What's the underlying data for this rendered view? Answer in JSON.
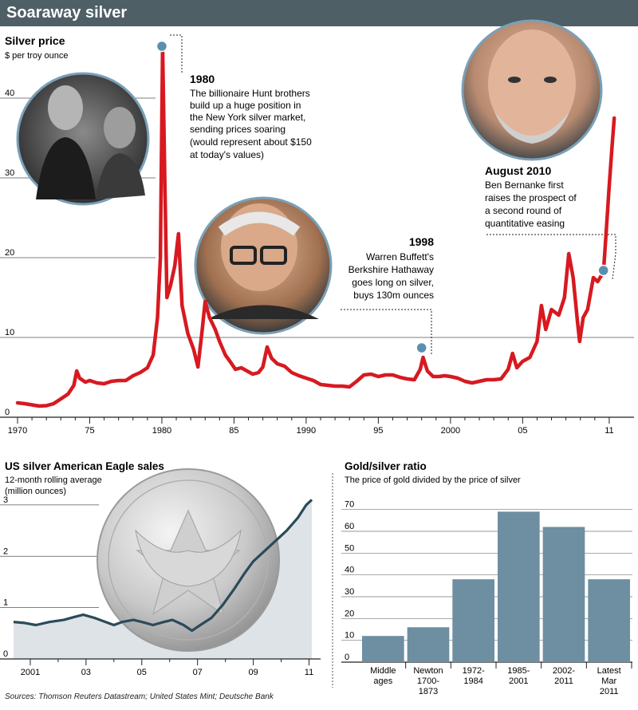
{
  "header": {
    "title": "Soaraway silver"
  },
  "chart_data": [
    {
      "type": "line",
      "title": "Silver price",
      "subtitle": "$ per troy ounce",
      "ylim": [
        0,
        48
      ],
      "y_ticks": [
        "0",
        "10",
        "20",
        "30",
        "40"
      ],
      "x_ticks": [
        "1970",
        "75",
        "1980",
        "85",
        "1990",
        "95",
        "2000",
        "05",
        "11"
      ],
      "series": [
        {
          "color": "#d71920",
          "points": [
            [
              1970.0,
              1.8
            ],
            [
              1970.5,
              1.7
            ],
            [
              1971.0,
              1.55
            ],
            [
              1971.5,
              1.4
            ],
            [
              1972.0,
              1.45
            ],
            [
              1972.5,
              1.7
            ],
            [
              1973.0,
              2.3
            ],
            [
              1973.5,
              2.9
            ],
            [
              1973.9,
              4.0
            ],
            [
              1974.1,
              5.8
            ],
            [
              1974.3,
              4.9
            ],
            [
              1974.7,
              4.4
            ],
            [
              1975.0,
              4.6
            ],
            [
              1975.5,
              4.3
            ],
            [
              1976.0,
              4.2
            ],
            [
              1976.5,
              4.5
            ],
            [
              1977.0,
              4.6
            ],
            [
              1977.5,
              4.6
            ],
            [
              1978.0,
              5.2
            ],
            [
              1978.5,
              5.6
            ],
            [
              1979.0,
              6.2
            ],
            [
              1979.4,
              7.8
            ],
            [
              1979.7,
              12.5
            ],
            [
              1979.9,
              20.0
            ],
            [
              1980.05,
              46.5
            ],
            [
              1980.2,
              30.0
            ],
            [
              1980.35,
              15.0
            ],
            [
              1980.6,
              16.5
            ],
            [
              1980.9,
              19.0
            ],
            [
              1981.15,
              23.0
            ],
            [
              1981.4,
              14.0
            ],
            [
              1981.8,
              10.5
            ],
            [
              1982.2,
              8.5
            ],
            [
              1982.5,
              6.3
            ],
            [
              1982.8,
              11.0
            ],
            [
              1983.0,
              14.5
            ],
            [
              1983.3,
              12.5
            ],
            [
              1983.7,
              11.0
            ],
            [
              1984.0,
              9.5
            ],
            [
              1984.4,
              7.8
            ],
            [
              1984.8,
              6.8
            ],
            [
              1985.1,
              6.0
            ],
            [
              1985.5,
              6.2
            ],
            [
              1985.9,
              5.8
            ],
            [
              1986.3,
              5.4
            ],
            [
              1986.7,
              5.6
            ],
            [
              1987.0,
              6.3
            ],
            [
              1987.3,
              8.8
            ],
            [
              1987.6,
              7.4
            ],
            [
              1988.0,
              6.7
            ],
            [
              1988.5,
              6.4
            ],
            [
              1989.0,
              5.6
            ],
            [
              1989.5,
              5.2
            ],
            [
              1990.0,
              4.9
            ],
            [
              1990.5,
              4.6
            ],
            [
              1991.0,
              4.1
            ],
            [
              1991.5,
              4.0
            ],
            [
              1992.0,
              3.9
            ],
            [
              1992.5,
              3.9
            ],
            [
              1993.0,
              3.8
            ],
            [
              1993.5,
              4.5
            ],
            [
              1994.0,
              5.3
            ],
            [
              1994.5,
              5.4
            ],
            [
              1995.0,
              5.1
            ],
            [
              1995.5,
              5.3
            ],
            [
              1996.0,
              5.3
            ],
            [
              1996.5,
              5.0
            ],
            [
              1997.0,
              4.8
            ],
            [
              1997.5,
              4.7
            ],
            [
              1997.9,
              6.0
            ],
            [
              1998.1,
              7.5
            ],
            [
              1998.4,
              5.8
            ],
            [
              1998.8,
              5.1
            ],
            [
              1999.2,
              5.1
            ],
            [
              1999.6,
              5.2
            ],
            [
              2000.0,
              5.1
            ],
            [
              2000.5,
              4.9
            ],
            [
              2001.0,
              4.5
            ],
            [
              2001.5,
              4.3
            ],
            [
              2002.0,
              4.5
            ],
            [
              2002.5,
              4.7
            ],
            [
              2003.0,
              4.7
            ],
            [
              2003.5,
              4.8
            ],
            [
              2004.0,
              6.0
            ],
            [
              2004.3,
              8.0
            ],
            [
              2004.6,
              6.2
            ],
            [
              2005.0,
              7.0
            ],
            [
              2005.5,
              7.5
            ],
            [
              2006.0,
              9.5
            ],
            [
              2006.3,
              14.0
            ],
            [
              2006.6,
              11.0
            ],
            [
              2007.0,
              13.5
            ],
            [
              2007.5,
              12.8
            ],
            [
              2007.9,
              15.0
            ],
            [
              2008.2,
              20.5
            ],
            [
              2008.5,
              17.5
            ],
            [
              2008.8,
              12.0
            ],
            [
              2008.95,
              9.5
            ],
            [
              2009.2,
              12.5
            ],
            [
              2009.5,
              13.5
            ],
            [
              2009.9,
              17.5
            ],
            [
              2010.2,
              17.0
            ],
            [
              2010.6,
              18.2
            ],
            [
              2010.8,
              23.5
            ],
            [
              2011.0,
              29.0
            ],
            [
              2011.2,
              34.0
            ],
            [
              2011.35,
              37.5
            ]
          ]
        }
      ],
      "annotations": [
        {
          "heading": "1980",
          "lines": [
            "The billionaire Hunt brothers",
            "build up a huge position in",
            "the New York silver market,",
            "sending prices soaring",
            "(would represent about $150",
            "at today's values)"
          ]
        },
        {
          "heading": "1998",
          "lines": [
            "Warren Buffett's",
            "Berkshire Hathaway",
            "goes long on silver,",
            "buys 130m ounces"
          ]
        },
        {
          "heading": "August 2010",
          "lines": [
            "Ben Bernanke first",
            "raises the prospect of",
            "a second round of",
            "quantitative easing"
          ]
        }
      ],
      "markers": [
        {
          "x": 1980.0,
          "y": 46.5
        },
        {
          "x": 1998.0,
          "y": 8.7
        },
        {
          "x": 2010.6,
          "y": 18.4
        }
      ]
    },
    {
      "type": "area",
      "title": "US silver American Eagle sales",
      "subtitle": "12-month rolling average (million ounces)",
      "ylim": [
        0,
        3.2
      ],
      "y_ticks": [
        "0",
        "1",
        "2",
        "3"
      ],
      "x_ticks": [
        "2001",
        "03",
        "05",
        "07",
        "09",
        "11"
      ],
      "series": [
        {
          "color": "#2c4a59",
          "fill": "#dde3e7",
          "points": [
            [
              2000.4,
              0.72
            ],
            [
              2000.8,
              0.7
            ],
            [
              2001.2,
              0.66
            ],
            [
              2001.7,
              0.72
            ],
            [
              2002.2,
              0.76
            ],
            [
              2002.6,
              0.82
            ],
            [
              2002.9,
              0.86
            ],
            [
              2003.3,
              0.8
            ],
            [
              2003.7,
              0.72
            ],
            [
              2004.0,
              0.66
            ],
            [
              2004.3,
              0.72
            ],
            [
              2004.7,
              0.76
            ],
            [
              2005.0,
              0.72
            ],
            [
              2005.4,
              0.66
            ],
            [
              2005.8,
              0.72
            ],
            [
              2006.1,
              0.76
            ],
            [
              2006.5,
              0.66
            ],
            [
              2006.8,
              0.55
            ],
            [
              2007.1,
              0.66
            ],
            [
              2007.5,
              0.8
            ],
            [
              2007.9,
              1.05
            ],
            [
              2008.3,
              1.35
            ],
            [
              2008.7,
              1.68
            ],
            [
              2009.0,
              1.9
            ],
            [
              2009.4,
              2.1
            ],
            [
              2009.8,
              2.3
            ],
            [
              2010.2,
              2.5
            ],
            [
              2010.6,
              2.75
            ],
            [
              2010.9,
              3.0
            ],
            [
              2011.1,
              3.1
            ]
          ]
        }
      ]
    },
    {
      "type": "bar",
      "title": "Gold/silver ratio",
      "subtitle": "The price of gold divided by the price of silver",
      "ylim": [
        0,
        75
      ],
      "y_ticks": [
        "0",
        "10",
        "20",
        "30",
        "40",
        "50",
        "60",
        "70"
      ],
      "categories": [
        [
          "Middle",
          "ages"
        ],
        [
          "Newton",
          "1700-",
          "1873"
        ],
        [
          "1972-",
          "1984"
        ],
        [
          "1985-",
          "2001"
        ],
        [
          "2002-",
          "2011"
        ],
        [
          "Latest",
          "Mar",
          "2011"
        ]
      ],
      "values": [
        12,
        16,
        38,
        69,
        62,
        38
      ],
      "color": "#6e8ea1"
    }
  ],
  "footer": {
    "sources": "Sources: Thomson Reuters Datastream; United States Mint; Deutsche Bank"
  }
}
